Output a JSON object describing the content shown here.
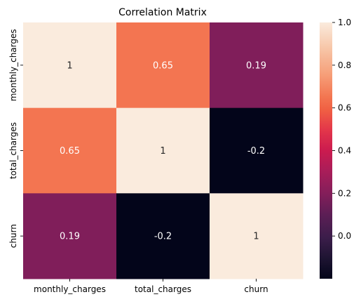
{
  "chart_data": {
    "type": "heatmap",
    "title": "Correlation Matrix",
    "xlabel": "",
    "ylabel": "",
    "x_labels": [
      "monthly_charges",
      "total_charges",
      "churn"
    ],
    "y_labels": [
      "monthly_charges",
      "total_charges",
      "churn"
    ],
    "values": [
      [
        1,
        0.65,
        0.19
      ],
      [
        0.65,
        1,
        -0.2
      ],
      [
        0.19,
        -0.2,
        1
      ]
    ],
    "cell_labels": [
      [
        "1",
        "0.65",
        "0.19"
      ],
      [
        "0.65",
        "1",
        "-0.2"
      ],
      [
        "0.19",
        "-0.2",
        "1"
      ]
    ],
    "colormap": "rocket",
    "colorbar": {
      "range": [
        -0.2,
        1.0
      ],
      "ticks": [
        0.0,
        0.2,
        0.4,
        0.6,
        0.8,
        1.0
      ],
      "tick_labels": [
        "0.0",
        "0.2",
        "0.4",
        "0.6",
        "0.8",
        "1.0"
      ]
    },
    "grid": false
  }
}
